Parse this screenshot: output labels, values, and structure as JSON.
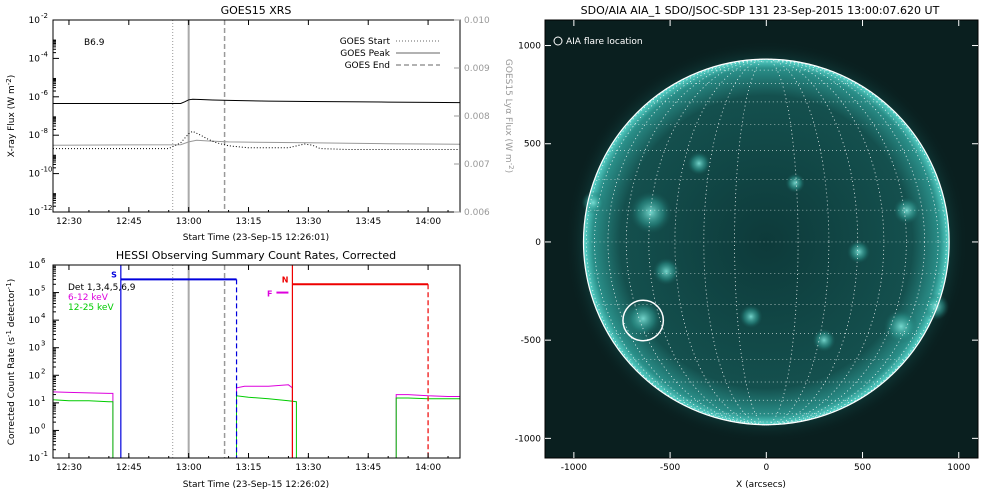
{
  "chart_data": [
    {
      "type": "line",
      "title": "GOES15 XRS",
      "xlabel": "Start Time (23-Sep-15 12:26:01)",
      "ylabel": "X-ray Flux (W m",
      "ylabel_sup": "-2",
      "ylabel_end": ")",
      "y2label": "GOES15 Lyα Flux (W m",
      "y2label_sup": "-2",
      "y2label_end": ")",
      "xlim": [
        "12:26",
        "14:08"
      ],
      "ylim": [
        1e-12,
        0.01
      ],
      "yscale": "log",
      "y2lim": [
        0.006,
        0.01
      ],
      "x_ticks": [
        "12:30",
        "12:45",
        "13:00",
        "13:15",
        "13:30",
        "13:45",
        "14:00"
      ],
      "y_ticks": [
        {
          "value": 0.01,
          "base": "10",
          "exp": "-2"
        },
        {
          "value": 0.0001,
          "base": "10",
          "exp": "-4"
        },
        {
          "value": 1e-06,
          "base": "10",
          "exp": "-6"
        },
        {
          "value": 1e-08,
          "base": "10",
          "exp": "-8"
        },
        {
          "value": 1e-10,
          "base": "10",
          "exp": "-10"
        },
        {
          "value": 1e-12,
          "base": "10",
          "exp": "-12"
        }
      ],
      "y2_ticks": [
        "0.010",
        "0.009",
        "0.008",
        "0.007",
        "0.006"
      ],
      "annotation": "B6.9",
      "legend": [
        {
          "label": "GOES Start",
          "style": "dotted",
          "color": "#999999"
        },
        {
          "label": "GOES Peak",
          "style": "solid",
          "color": "#999999"
        },
        {
          "label": "GOES End",
          "style": "dashed",
          "color": "#999999"
        }
      ],
      "markers": {
        "start": "12:56",
        "peak": "13:00",
        "end": "13:09"
      },
      "series": [
        {
          "style": "solid",
          "color": "#000000",
          "x": [
            "12:26",
            "12:58",
            "12:59",
            "13:00",
            "13:01",
            "13:03",
            "13:06",
            "13:10",
            "13:15",
            "13:20",
            "13:30",
            "13:40",
            "13:50",
            "14:00",
            "14:08"
          ],
          "y": [
            4.5e-07,
            4.5e-07,
            5.5e-07,
            7e-07,
            7.5e-07,
            7.2e-07,
            6.8e-07,
            6.5e-07,
            6.2e-07,
            6e-07,
            5.7e-07,
            5.5e-07,
            5.3e-07,
            5.1e-07,
            5e-07
          ]
        },
        {
          "style": "solid",
          "color": "#999999",
          "x": [
            "12:26",
            "12:58",
            "13:00",
            "13:02",
            "13:05",
            "13:10",
            "13:20",
            "13:30",
            "13:40",
            "13:50",
            "14:00",
            "14:08"
          ],
          "y": [
            3e-09,
            3.2e-09,
            4.5e-09,
            5.5e-09,
            5e-09,
            4.5e-09,
            4.2e-09,
            4e-09,
            3.8e-09,
            3.6e-09,
            3.5e-09,
            3.4e-09
          ]
        },
        {
          "style": "dotted",
          "color": "#000000",
          "x": [
            "12:26",
            "12:55",
            "12:58",
            "13:00",
            "13:01",
            "13:03",
            "13:05",
            "13:07",
            "13:10",
            "13:15",
            "13:25",
            "13:29",
            "13:31",
            "13:33",
            "13:40",
            "14:08"
          ],
          "y": [
            2e-09,
            2e-09,
            4e-09,
            1.2e-08,
            1.6e-08,
            1e-08,
            6e-09,
            4e-09,
            2.8e-09,
            2.2e-09,
            2.2e-09,
            3.5e-09,
            3e-09,
            2e-09,
            1.8e-09,
            1.8e-09
          ]
        }
      ]
    },
    {
      "type": "line",
      "title": "HESSI Observing Summary Count Rates, Corrected",
      "xlabel": "Start Time (23-Sep-15 12:26:02)",
      "ylabel": "Corrected Count Rate (s",
      "ylabel_sup": "-1",
      "ylabel_end": " detector",
      "ylabel_sup2": "-1",
      "ylabel_end2": ")",
      "xlim": [
        "12:26",
        "14:08"
      ],
      "ylim": [
        0.1,
        1000000.0
      ],
      "yscale": "log",
      "x_ticks": [
        "12:30",
        "12:45",
        "13:00",
        "13:15",
        "13:30",
        "13:45",
        "14:00"
      ],
      "y_ticks": [
        {
          "value": 1000000.0,
          "base": "10",
          "exp": "6"
        },
        {
          "value": 100000.0,
          "base": "10",
          "exp": "5"
        },
        {
          "value": 10000.0,
          "base": "10",
          "exp": "4"
        },
        {
          "value": 1000.0,
          "base": "10",
          "exp": "3"
        },
        {
          "value": 100.0,
          "base": "10",
          "exp": "2"
        },
        {
          "value": 10.0,
          "base": "10",
          "exp": "1"
        },
        {
          "value": 1.0,
          "base": "10",
          "exp": "0"
        },
        {
          "value": 0.1,
          "base": "10",
          "exp": "-1"
        }
      ],
      "legend": [
        {
          "label": "Det 1,3,4,5,6,9",
          "color": "#000000"
        },
        {
          "label": "6-12 keV",
          "color": "#dd00dd"
        },
        {
          "label": "12-25 keV",
          "color": "#00cc00"
        }
      ],
      "markers": {
        "start": "12:56",
        "peak": "13:00",
        "end": "13:09"
      },
      "flags": [
        {
          "label": "S",
          "color": "#0000dd",
          "start": "12:43",
          "end": "13:12",
          "value": 300000.0
        },
        {
          "label": "F",
          "color": "#dd00dd",
          "start": "13:22",
          "end": "13:25",
          "value": 100000.0
        },
        {
          "label": "N",
          "color": "#ee0000",
          "start": "13:26",
          "end": "14:00",
          "value": 200000.0
        }
      ],
      "series": [
        {
          "name": "6-12 keV",
          "color": "#dd00dd",
          "x": [
            "12:26",
            "12:30",
            "12:35",
            "12:40",
            "12:41",
            "12:41",
            "13:12",
            "13:12",
            "13:14",
            "13:20",
            "13:25",
            "13:26",
            "13:26",
            "13:52",
            "13:52",
            "13:55",
            "14:00",
            "14:05",
            "14:08"
          ],
          "y": [
            25,
            24,
            23,
            22,
            22,
            0.1,
            0.1,
            35,
            40,
            40,
            45,
            35,
            0.1,
            0.1,
            20,
            20,
            18,
            17,
            17
          ]
        },
        {
          "name": "12-25 keV",
          "color": "#00cc00",
          "x": [
            "12:26",
            "12:30",
            "12:35",
            "12:40",
            "12:41",
            "12:41",
            "13:12",
            "13:12",
            "13:15",
            "13:20",
            "13:25",
            "13:27",
            "13:27",
            "13:52",
            "13:52",
            "13:55",
            "14:00",
            "14:05",
            "14:08"
          ],
          "y": [
            13,
            12,
            12,
            11,
            11,
            0.1,
            0.1,
            18,
            16,
            14,
            12,
            11,
            0.1,
            0.1,
            15,
            15,
            14,
            14,
            14
          ]
        }
      ]
    },
    {
      "type": "heatmap",
      "title": "SDO/AIA AIA_1 SDO/JSOC-SDP 131 23-Sep-2015 13:00:07.620 UT",
      "xlabel": "X (arcsecs)",
      "ylabel": "",
      "xlim": [
        -1150,
        1100
      ],
      "ylim": [
        -1100,
        1130
      ],
      "x_ticks": [
        -1000,
        -500,
        0,
        500,
        1000
      ],
      "y_ticks": [
        1000,
        500,
        0,
        -500,
        -1000
      ],
      "solar_radius": 950,
      "annotation": "AIA flare location",
      "flare": {
        "x": -640,
        "y": -400,
        "r": 105
      },
      "colormap": [
        "#0b2a2a",
        "#1f6a68",
        "#3fb8ad",
        "#bff5ee"
      ]
    }
  ]
}
